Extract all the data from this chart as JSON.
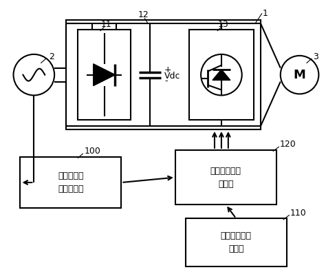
{
  "background_color": "#ffffff",
  "line_color": "#000000",
  "lw": 1.5,
  "label_1": "1",
  "label_2": "2",
  "label_3": "3",
  "label_11": "11",
  "label_12": "12",
  "label_13": "13",
  "label_100": "100",
  "label_110": "110",
  "label_120": "120",
  "label_vdc": "Vdc",
  "label_plus": "+",
  "label_minus": "-",
  "box100_text": "过调制电压\n指令生成部",
  "box110_text": "初始电压指令\n生成部",
  "box120_text": "最终电压指令\n生成部",
  "figsize": [
    4.74,
    3.95
  ],
  "dpi": 100
}
